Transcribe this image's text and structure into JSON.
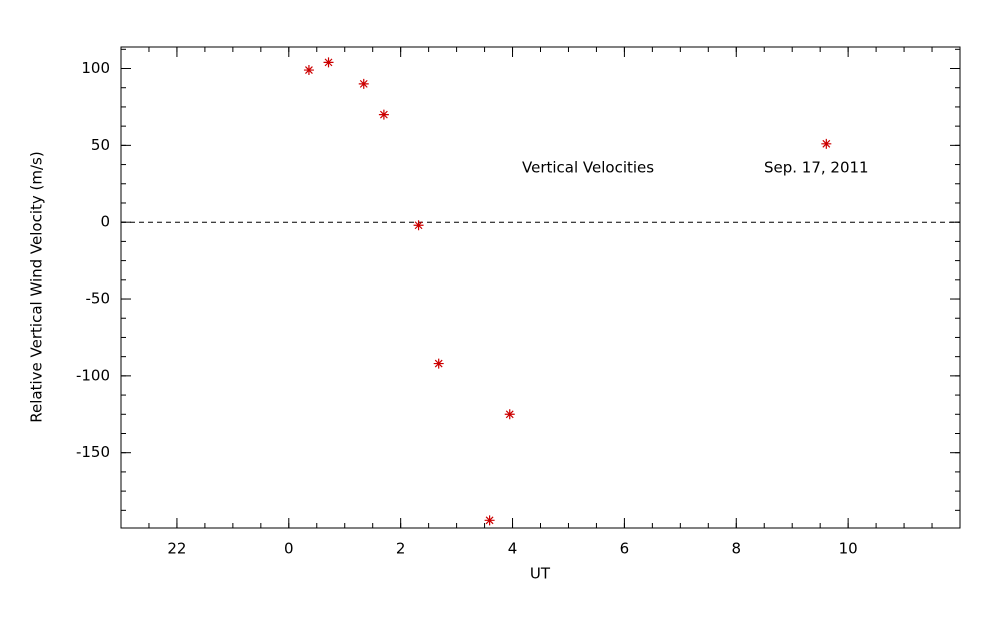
{
  "chart_data": {
    "type": "scatter",
    "xlabel": "UT",
    "ylabel": "Relative Vertical Wind Velocity (m/s)",
    "annotations": [
      "Vertical Velocities",
      "Sep. 17, 2011"
    ],
    "series": [
      {
        "color": "#cc0000",
        "marker": "asterisk",
        "x": [
          0.36,
          0.71,
          1.34,
          1.7,
          2.32,
          2.68,
          3.59,
          3.95,
          9.61
        ],
        "values": [
          99,
          104,
          90,
          70,
          -2,
          -92,
          -194,
          -125,
          51
        ]
      }
    ],
    "xlim": [
      -3,
      12
    ],
    "xticks": [
      {
        "value": -2,
        "label": "22"
      },
      0,
      2,
      4,
      6,
      8,
      10
    ],
    "ylim": [
      -199,
      114
    ],
    "yticks": [
      -150,
      -100,
      -50,
      0,
      50,
      100
    ],
    "hline": 0
  }
}
